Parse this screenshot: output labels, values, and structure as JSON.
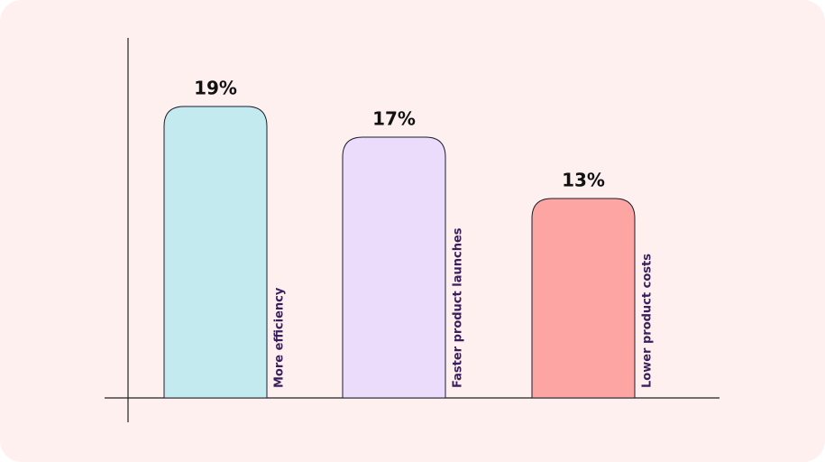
{
  "chart_data": {
    "type": "bar",
    "categories": [
      "More efficiency",
      "Faster product launches",
      "Lower product costs"
    ],
    "values": [
      19,
      17,
      13
    ],
    "value_labels": [
      "19%",
      "17%",
      "13%"
    ],
    "colors": [
      "#c3ebef",
      "#ecdcfc",
      "#fca5a3"
    ]
  }
}
